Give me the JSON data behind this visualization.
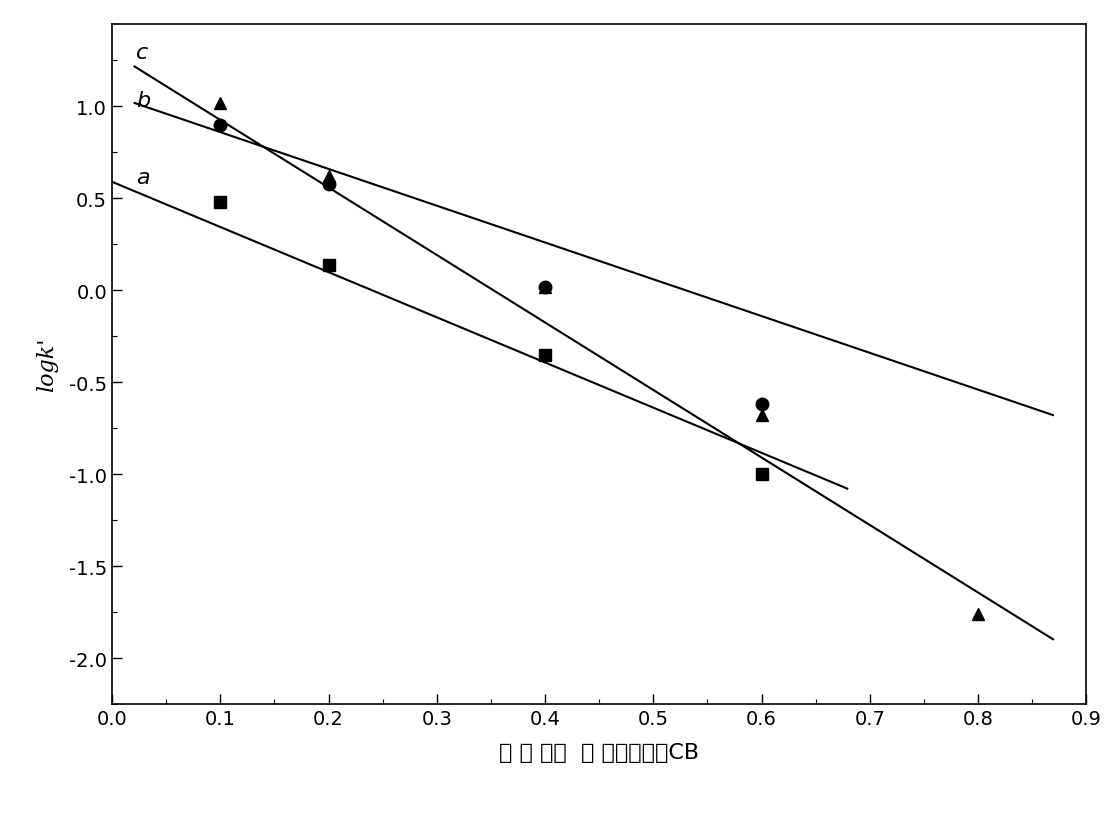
{
  "ylabel": "logk'",
  "xlim": [
    0.0,
    0.9
  ],
  "ylim": [
    -2.25,
    1.45
  ],
  "xticks": [
    0.0,
    0.1,
    0.2,
    0.3,
    0.4,
    0.5,
    0.6,
    0.7,
    0.8,
    0.9
  ],
  "yticks": [
    -2.0,
    -1.5,
    -1.0,
    -0.5,
    0.0,
    0.5,
    1.0
  ],
  "background_color": "#ffffff",
  "line_color": "#000000",
  "series": [
    {
      "label": "a",
      "marker": "s",
      "x_data": [
        0.1,
        0.2,
        0.4,
        0.6
      ],
      "y_data": [
        0.48,
        0.14,
        -0.35,
        -1.0
      ],
      "fit_x": [
        0.0,
        0.68
      ],
      "fit_y": [
        0.59,
        -1.08
      ]
    },
    {
      "label": "b",
      "marker": "o",
      "x_data": [
        0.1,
        0.2,
        0.4,
        0.6
      ],
      "y_data": [
        0.9,
        0.58,
        0.02,
        -0.62
      ],
      "fit_x": [
        0.02,
        0.87
      ],
      "fit_y": [
        1.02,
        -0.68
      ]
    },
    {
      "label": "c",
      "marker": "^",
      "x_data": [
        0.1,
        0.2,
        0.4,
        0.6,
        0.8
      ],
      "y_data": [
        1.02,
        0.62,
        0.02,
        -0.68,
        -1.76
      ],
      "fit_x": [
        0.02,
        0.87
      ],
      "fit_y": [
        1.22,
        -1.9
      ]
    }
  ],
  "marker_size": 9,
  "marker_color": "#000000",
  "line_width": 1.5,
  "label_positions": {
    "a": [
      0.022,
      0.56
    ],
    "b": [
      0.022,
      0.98
    ],
    "c": [
      0.022,
      1.24
    ]
  },
  "xlabel_main": "流 动 相中  甲 醇体积份数C",
  "xlabel_sub": "B"
}
